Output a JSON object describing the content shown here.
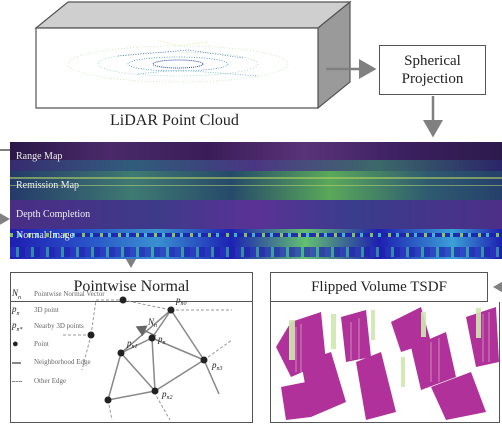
{
  "top": {
    "point_cloud_label": "LiDAR Point Cloud",
    "projection_label": "Spherical Projection"
  },
  "strips": [
    {
      "label": "Range Map",
      "colors": [
        "#3a1a5a",
        "#5d2f7a",
        "#6b3b86"
      ]
    },
    {
      "label": "Remission Map",
      "colors": [
        "#2f3d6f",
        "#3f7a72",
        "#5aa85a"
      ]
    },
    {
      "label": "Depth Completion",
      "colors": [
        "#4a2d86",
        "#3e3a8a",
        "#543092"
      ]
    },
    {
      "label": "Normal Image",
      "colors": [
        "#1e1fb0",
        "#3a90d0",
        "#8ad44a"
      ]
    }
  ],
  "bottom": {
    "normal_title": "Pointwise Normal",
    "tsdf_title": "Flipped Volume TSDF"
  },
  "legend": [
    {
      "symbol": "N_n",
      "text": "Pointwise Normal Vector"
    },
    {
      "symbol": "p_n",
      "text": "3D point"
    },
    {
      "symbol": "p_n*",
      "text": "Nearby 3D points"
    },
    {
      "symbol": "●",
      "text": "Point"
    },
    {
      "symbol": "—",
      "text": "Neighborhood Edge"
    },
    {
      "symbol": "- -",
      "text": "Other Edge"
    }
  ],
  "graph_labels": {
    "pn0": "p_n0",
    "pn": "p_n",
    "pn1": "p_n1",
    "pn2": "p_n2",
    "pn3": "p_n3",
    "nn": "N_n"
  },
  "colors": {
    "border": "#555555",
    "arrow": "#808080",
    "tsdf_magenta": "#b0319a",
    "tsdf_green": "#cfe8b0"
  }
}
